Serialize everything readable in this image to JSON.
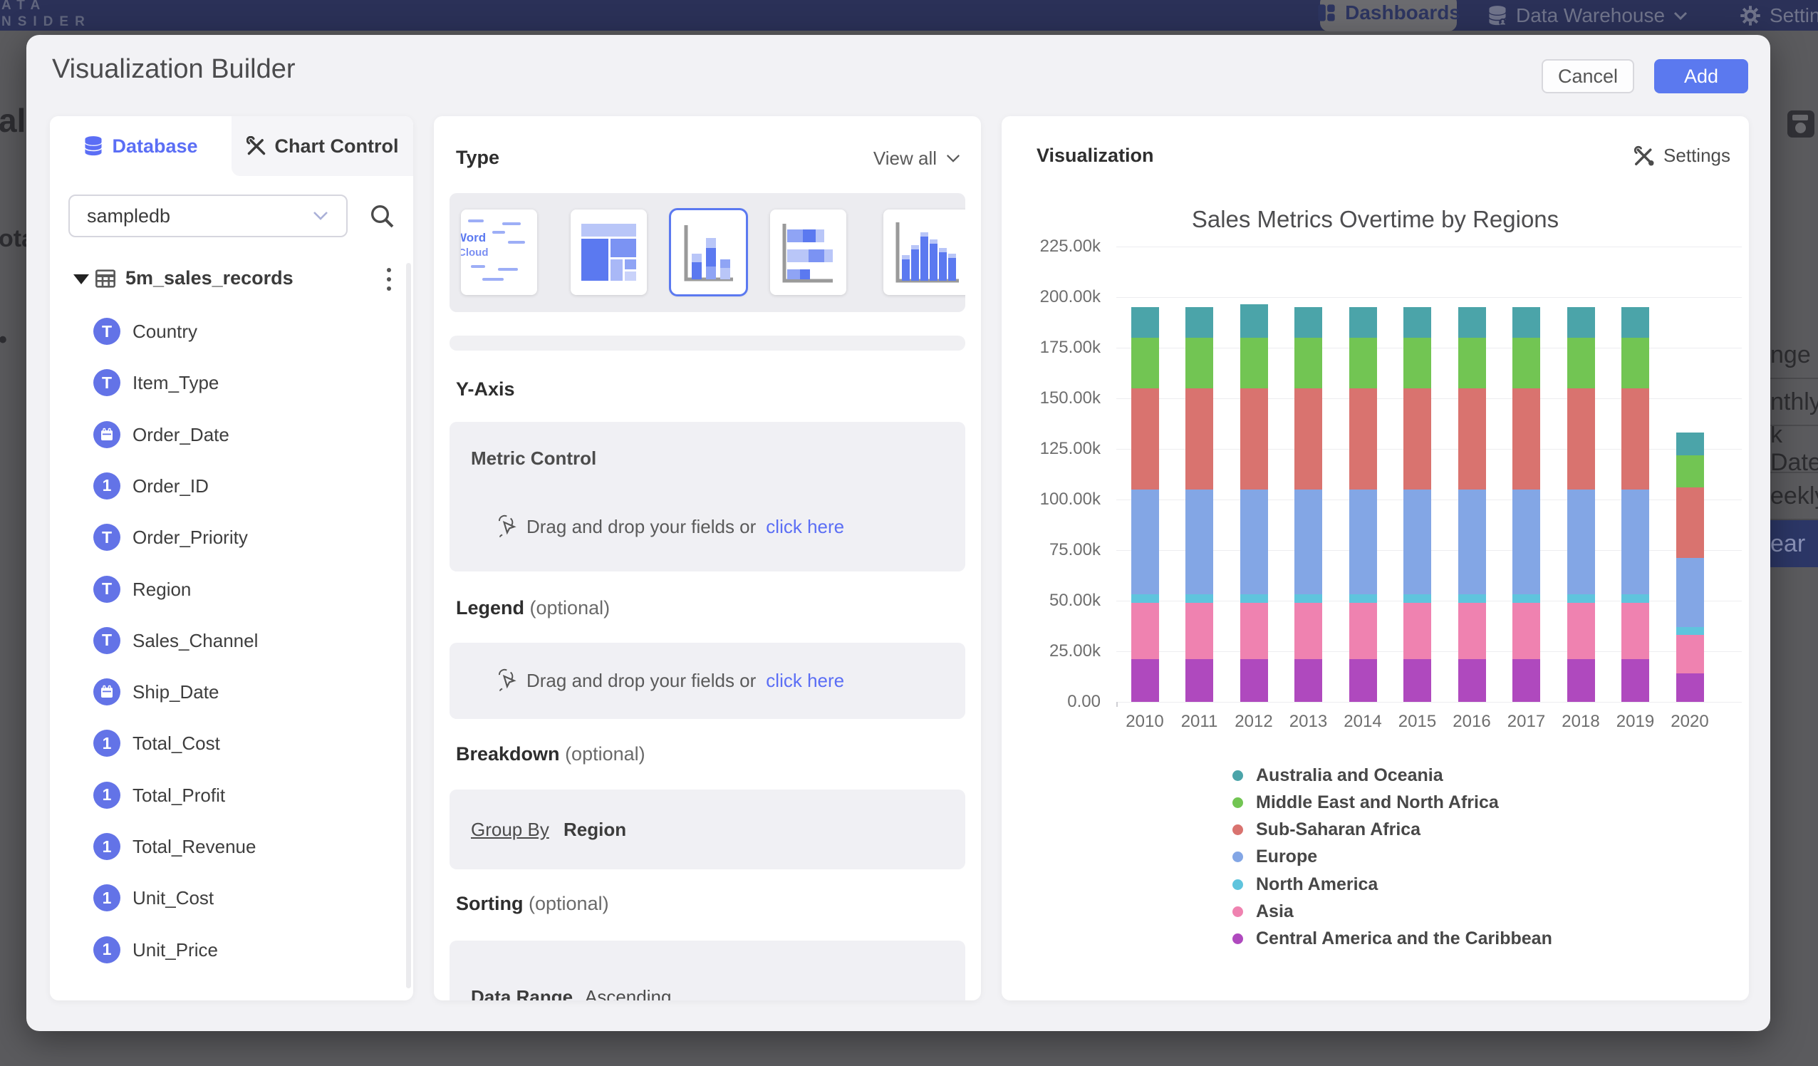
{
  "backdrop": {
    "logo_line1": "ATA",
    "logo_line2": "NSIDER",
    "nav": {
      "dashboards": "Dashboards",
      "data_warehouse": "Data Warehouse",
      "settings": "Settings"
    },
    "left_fragments": [
      {
        "label": "al",
        "y": 142,
        "size": 46
      },
      {
        "label": "ota",
        "y": 316,
        "size": 34
      },
      {
        "label": "•",
        "y": 458,
        "size": 34
      }
    ],
    "right_fragments": [
      {
        "label": "nge",
        "selected": false
      },
      {
        "label": "nthly",
        "selected": false
      },
      {
        "label": "k Date",
        "selected": false
      },
      {
        "label": "eekly",
        "selected": false
      },
      {
        "label": "ear",
        "selected": true
      }
    ]
  },
  "modal": {
    "title": "Visualization Builder",
    "cancel_label": "Cancel",
    "add_label": "Add",
    "database_panel": {
      "tab_database": "Database",
      "tab_chart_control": "Chart Control",
      "database_select_value": "sampledb",
      "table_name": "5m_sales_records",
      "fields": [
        {
          "name": "Country",
          "type": "text"
        },
        {
          "name": "Item_Type",
          "type": "text"
        },
        {
          "name": "Order_Date",
          "type": "date"
        },
        {
          "name": "Order_ID",
          "type": "number"
        },
        {
          "name": "Order_Priority",
          "type": "text"
        },
        {
          "name": "Region",
          "type": "text"
        },
        {
          "name": "Sales_Channel",
          "type": "text"
        },
        {
          "name": "Ship_Date",
          "type": "date"
        },
        {
          "name": "Total_Cost",
          "type": "number"
        },
        {
          "name": "Total_Profit",
          "type": "number"
        },
        {
          "name": "Total_Revenue",
          "type": "number"
        },
        {
          "name": "Unit_Cost",
          "type": "number"
        },
        {
          "name": "Unit_Price",
          "type": "number"
        }
      ]
    },
    "builder_panel": {
      "type_label": "Type",
      "view_all_label": "View all",
      "selected_chart_type": "stacked-column",
      "word_cloud": {
        "word1": "Word",
        "word2": "Cloud"
      },
      "y_axis": {
        "label": "Y-Axis",
        "box_title": "Metric Control",
        "drag_text": "Drag and drop your fields or",
        "link_text": "click here"
      },
      "legend_section": {
        "label": "Legend",
        "optional": "(optional)",
        "drag_text": "Drag and drop your fields or",
        "link_text": "click here"
      },
      "breakdown_section": {
        "label": "Breakdown",
        "optional": "(optional)",
        "group_by_label": "Group By",
        "group_by_value": "Region"
      },
      "sorting_section": {
        "label": "Sorting",
        "optional": "(optional)",
        "row_label": "Data Range",
        "row_value": "Ascending"
      }
    },
    "viz_panel": {
      "label": "Visualization",
      "settings_label": "Settings"
    }
  },
  "chart_data": {
    "type": "bar",
    "stacked": true,
    "title": "Sales Metrics Overtime by Regions",
    "categories": [
      "2010",
      "2011",
      "2012",
      "2013",
      "2014",
      "2015",
      "2016",
      "2017",
      "2018",
      "2019",
      "2020"
    ],
    "unit": "thousands",
    "ylim": [
      0,
      225
    ],
    "ytick_step": 25,
    "ytick_labels": [
      "0.00",
      "25.00k",
      "50.00k",
      "75.00k",
      "100.00k",
      "125.00k",
      "150.00k",
      "175.00k",
      "200.00k",
      "225.00k"
    ],
    "grid": true,
    "legend_position": "bottom-left",
    "series": [
      {
        "name": "Central America and the Caribbean",
        "color": "#af49be",
        "values": [
          21,
          21,
          21,
          21,
          21,
          21,
          21,
          21,
          21,
          21,
          14
        ]
      },
      {
        "name": "Asia",
        "color": "#ef82b0",
        "values": [
          28,
          28,
          28,
          28,
          28,
          28,
          28,
          28,
          28,
          28,
          19
        ]
      },
      {
        "name": "North America",
        "color": "#5fc4dd",
        "values": [
          4,
          4,
          4,
          4,
          4,
          4,
          4,
          4,
          4,
          4,
          4
        ]
      },
      {
        "name": "Europe",
        "color": "#83a6e5",
        "values": [
          52,
          52,
          52,
          52,
          52,
          52,
          52,
          52,
          52,
          52,
          34
        ]
      },
      {
        "name": "Sub-Saharan Africa",
        "color": "#d9736f",
        "values": [
          50,
          50,
          50,
          50,
          50,
          50,
          50,
          50,
          50,
          50,
          35
        ]
      },
      {
        "name": "Middle East and North Africa",
        "color": "#72c553",
        "values": [
          25,
          25,
          25,
          25,
          25,
          25,
          25,
          25,
          25,
          25,
          16
        ]
      },
      {
        "name": "Australia and Oceania",
        "color": "#4ba4a9",
        "values": [
          15,
          15,
          16.5,
          15,
          15,
          15,
          15,
          15,
          15,
          15,
          11
        ]
      }
    ],
    "legend_order": [
      "Australia and Oceania",
      "Middle East and North Africa",
      "Sub-Saharan Africa",
      "Europe",
      "North America",
      "Asia",
      "Central America and the Caribbean"
    ]
  }
}
